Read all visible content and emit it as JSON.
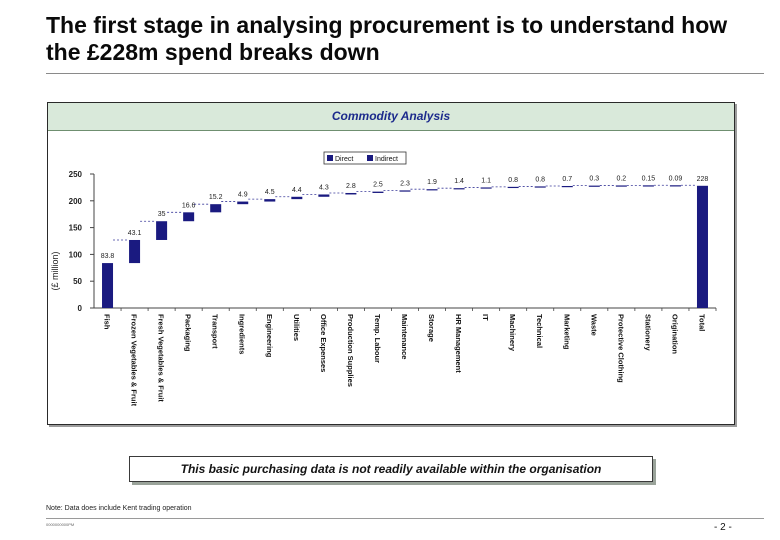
{
  "page": {
    "title": "The first stage in analysing procurement is to understand how the £228m spend breaks down",
    "panel_title": "Commodity Analysis",
    "callout": "This basic purchasing data is not readily available within the organisation",
    "note": "Note: Data does include Kent trading operation",
    "doc_ref": "0000000000PM",
    "page_number": "- 2 -"
  },
  "colors": {
    "bar": "#1a1a80",
    "header_bg": "#d9e9da",
    "accent": "#1c2a8c"
  },
  "chart_data": {
    "type": "bar",
    "subtype": "waterfall",
    "title": "Commodity Analysis",
    "xlabel": "",
    "ylabel": "(£ million)",
    "ylim": [
      0,
      250
    ],
    "yticks": [
      0,
      50,
      100,
      150,
      200,
      250
    ],
    "legend": [
      "Direct",
      "Indirect"
    ],
    "legend_position": "top-center",
    "grid": false,
    "categories": [
      "Fish",
      "Frozen Vegetables & Fruit",
      "Fresh Vegetables & Fruit",
      "Packaging",
      "Transport",
      "Ingredients",
      "Engineering",
      "Utilities",
      "Office Expenses",
      "Production Supplies",
      "Temp. Labour",
      "Maintenance",
      "Storage",
      "HR Management",
      "IT",
      "Machinery",
      "Technical",
      "Marketing",
      "Waste",
      "Protective Clothing",
      "Stationery",
      "Origination",
      "Total"
    ],
    "values": [
      83.8,
      43.1,
      35,
      16.6,
      15.2,
      4.9,
      4.5,
      4.4,
      4.3,
      2.8,
      2.5,
      2.3,
      1.9,
      1.4,
      1.1,
      0.8,
      0.8,
      0.7,
      0.3,
      0.2,
      0.15,
      0.09,
      228
    ],
    "labels": [
      "83.8",
      "43.1",
      "35",
      "16.6",
      "15.2",
      "4.9",
      "4.5",
      "4.4",
      "4.3",
      "2.8",
      "2.5",
      "2.3",
      "1.9",
      "1.4",
      "1.1",
      "0.8",
      "0.8",
      "0.7",
      "0.3",
      "0.2",
      "0.15",
      "0.09",
      "228"
    ],
    "is_total": [
      false,
      false,
      false,
      false,
      false,
      false,
      false,
      false,
      false,
      false,
      false,
      false,
      false,
      false,
      false,
      false,
      false,
      false,
      false,
      false,
      false,
      false,
      true
    ],
    "connector_style": "dashed"
  }
}
